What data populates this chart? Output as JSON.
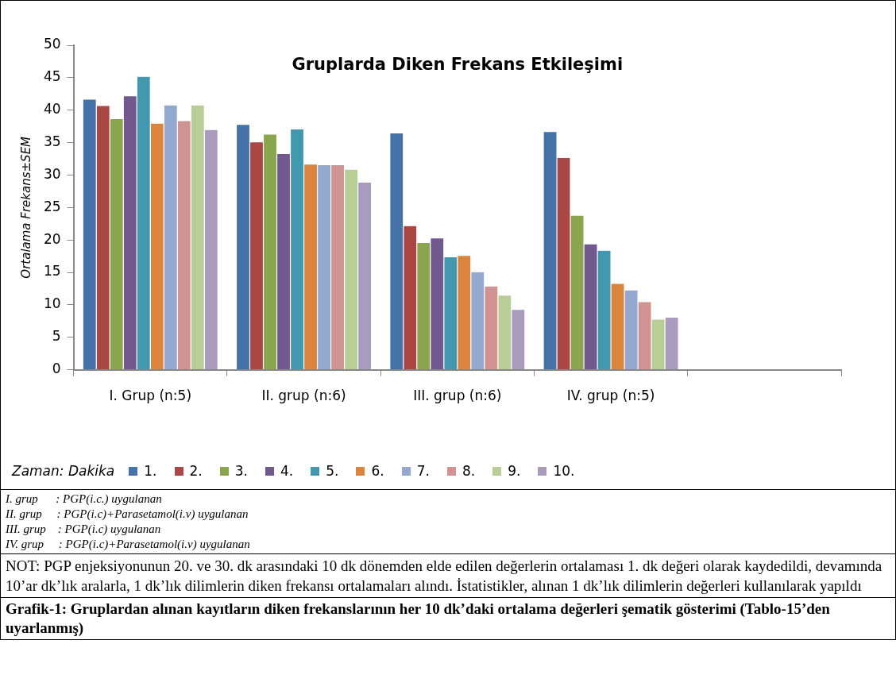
{
  "chart_data": {
    "type": "bar",
    "title": "Gruplarda Diken Frekans Etkileşimi",
    "ylabel": "Ortalama Frekans±SEM",
    "legend_title": "Zaman: Dakika",
    "legend": "bottom",
    "grid": false,
    "categories": [
      "I. Grup (n:5)",
      "II. grup (n:6)",
      "III. grup (n:6)",
      "IV. grup (n:5)",
      null
    ],
    "ylim": [
      0,
      50
    ],
    "yticks": [
      0,
      5,
      10,
      15,
      20,
      25,
      30,
      35,
      40,
      45,
      50
    ],
    "series": [
      {
        "name": "1.",
        "color": "#4572a7",
        "values": [
          41.7,
          37.8,
          36.5,
          36.7,
          null
        ]
      },
      {
        "name": "2.",
        "color": "#aa4643",
        "values": [
          40.7,
          35.1,
          22.2,
          32.7,
          null
        ]
      },
      {
        "name": "3.",
        "color": "#89a54e",
        "values": [
          38.7,
          36.3,
          19.6,
          23.8,
          null
        ]
      },
      {
        "name": "4.",
        "color": "#71588f",
        "values": [
          42.2,
          33.3,
          20.3,
          19.4,
          null
        ]
      },
      {
        "name": "5.",
        "color": "#4198af",
        "values": [
          45.2,
          37.1,
          17.4,
          18.4,
          null
        ]
      },
      {
        "name": "6.",
        "color": "#db843d",
        "values": [
          38.0,
          31.7,
          17.6,
          13.3,
          null
        ]
      },
      {
        "name": "7.",
        "color": "#93a9cf",
        "values": [
          40.8,
          31.6,
          15.1,
          12.3,
          null
        ]
      },
      {
        "name": "8.",
        "color": "#d19392",
        "values": [
          38.4,
          31.6,
          12.9,
          10.5,
          null
        ]
      },
      {
        "name": "9.",
        "color": "#b9cd96",
        "values": [
          40.8,
          30.9,
          11.5,
          7.8,
          null
        ]
      },
      {
        "name": "10.",
        "color": "#a99bbd",
        "values": [
          37.0,
          28.9,
          9.3,
          8.1,
          null
        ]
      }
    ],
    "annotations": [
      "I. grup      : PGP(i.c.) uygulanan",
      "II. grup     : PGP(i.c)+Parasetamol(i.v) uygulanan",
      "III. grup    : PGP(i.c) uygulanan",
      "IV. grup     : PGP(i.c)+Parasetamol(i.v) uygulanan",
      "NOT: PGP enjeksiyonunun 20. ve 30. dk arasındaki 10 dk dönemden elde edilen değerlerin ortalaması 1. dk değeri olarak kaydedildi, devamında 10’ar dk’lık aralarla, 1 dk’lık dilimlerin diken frekansı ortalamaları alındı. İstatistikler, alınan 1 dk’lık dilimlerin değerleri kullanılarak yapıldı",
      "Grafik-1: Gruplardan alınan kayıtların diken frekanslarının her 10 dk’daki ortalama değerleri şematik gösterimi (Tablo-15’den uyarlanmış)"
    ]
  }
}
